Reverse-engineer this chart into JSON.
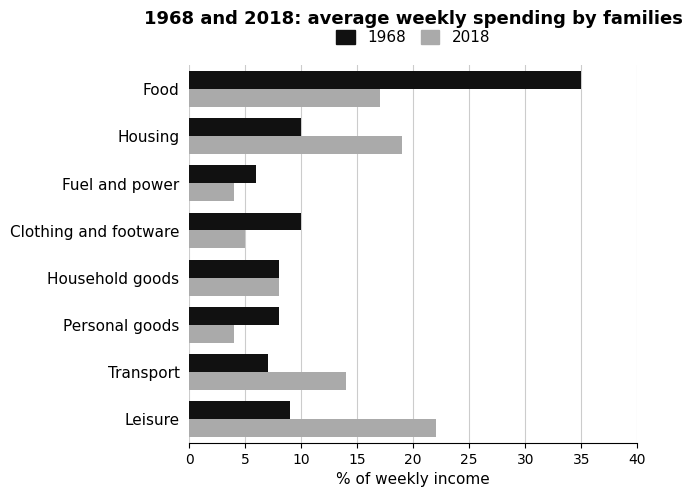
{
  "title": "1968 and 2018: average weekly spending by families",
  "categories": [
    "Food",
    "Housing",
    "Fuel and power",
    "Clothing and footware",
    "Household goods",
    "Personal goods",
    "Transport",
    "Leisure"
  ],
  "values_1968": [
    35,
    10,
    6,
    10,
    8,
    8,
    7,
    9
  ],
  "values_2018": [
    17,
    19,
    4,
    5,
    8,
    4,
    14,
    22
  ],
  "color_1968": "#111111",
  "color_2018": "#aaaaaa",
  "xlabel": "% of weekly income",
  "xlim": [
    0,
    40
  ],
  "xticks": [
    0,
    5,
    10,
    15,
    20,
    25,
    30,
    35,
    40
  ],
  "legend_labels": [
    "1968",
    "2018"
  ],
  "bar_height": 0.38,
  "title_fontsize": 13,
  "label_fontsize": 11,
  "tick_fontsize": 10,
  "background_color": "#ffffff"
}
